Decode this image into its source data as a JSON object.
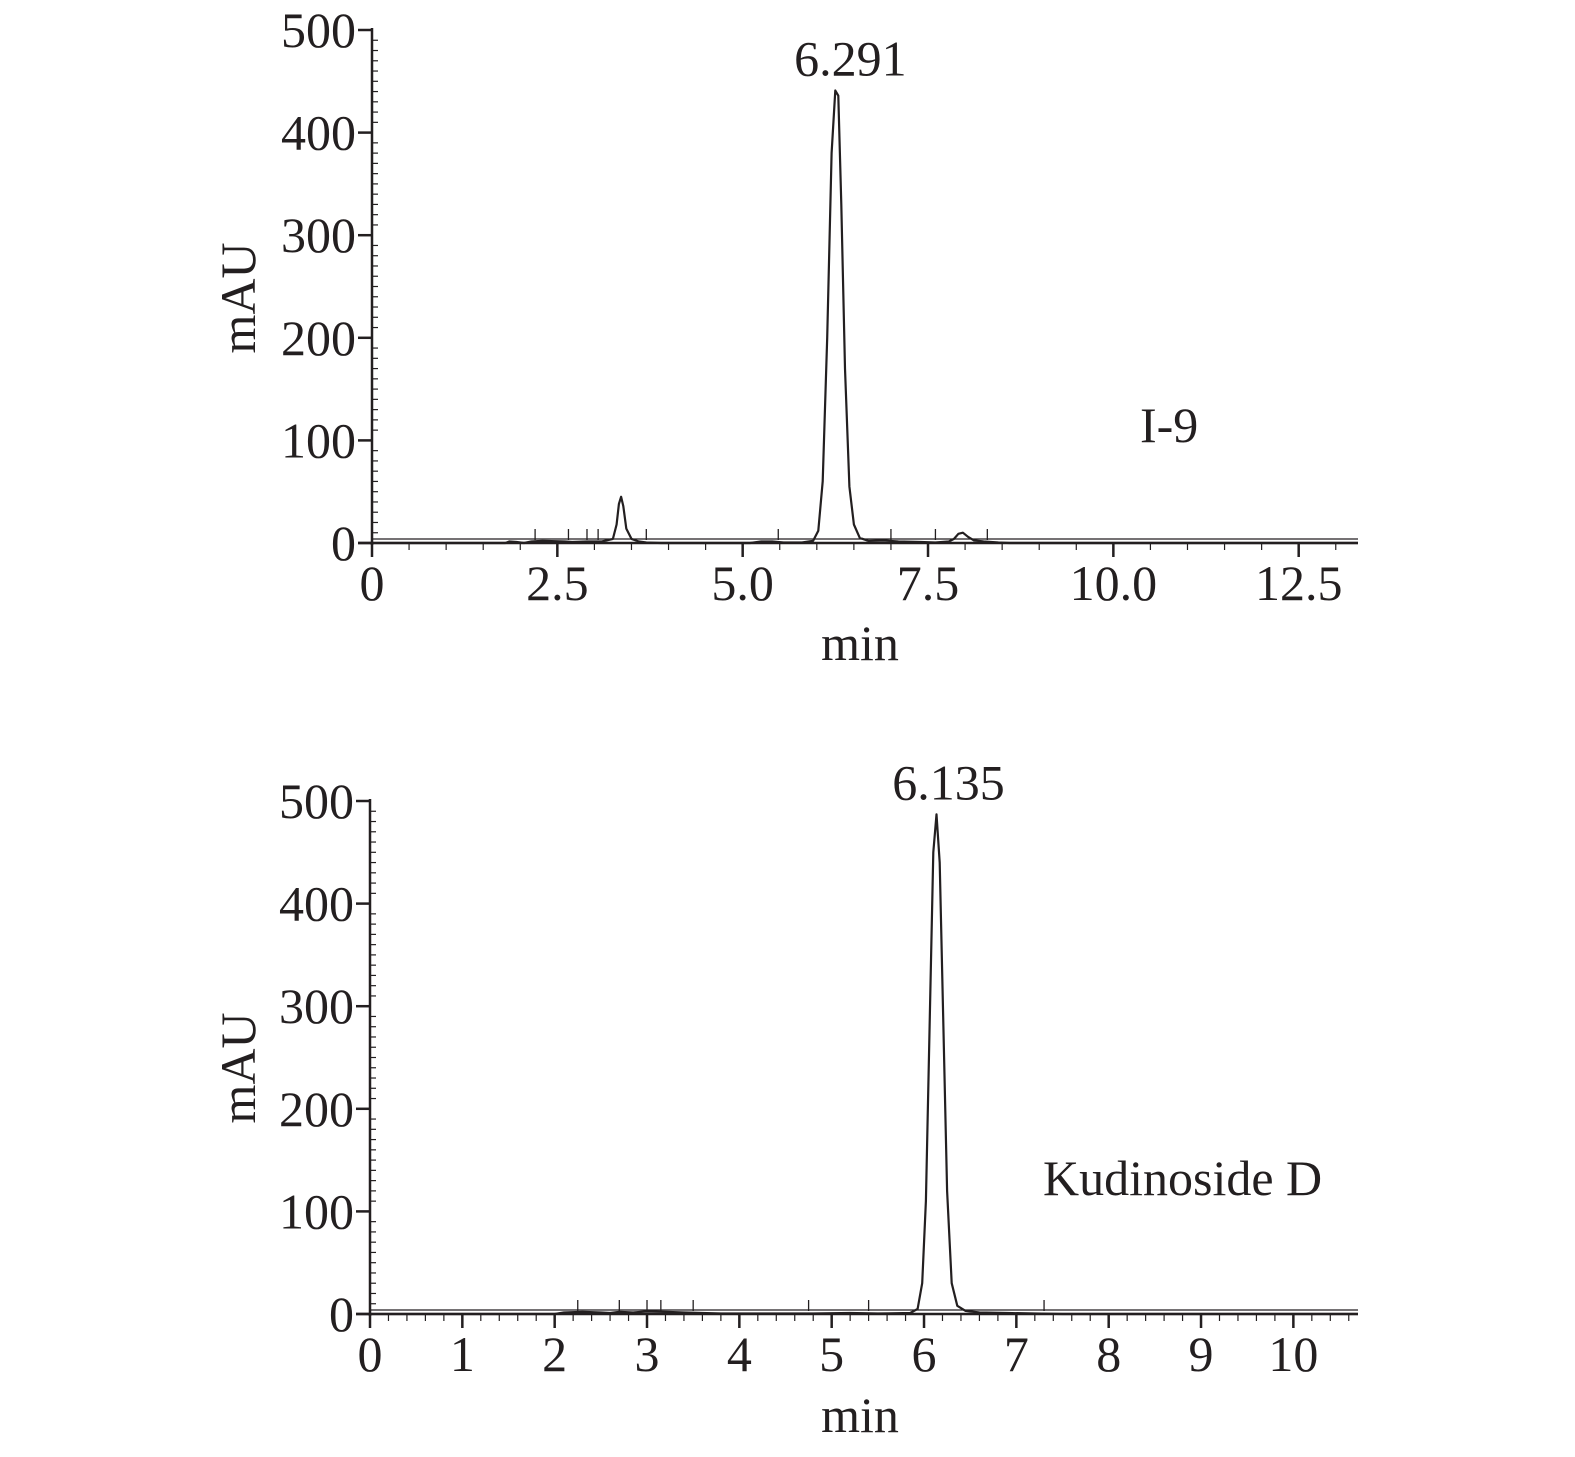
{
  "chart_data": [
    {
      "type": "line",
      "title": "",
      "xlabel": "min",
      "ylabel": "mAU",
      "xlim": [
        0,
        13.3
      ],
      "ylim": [
        0,
        500
      ],
      "x_ticks": [
        0,
        2.5,
        5.0,
        7.5,
        10.0,
        12.5
      ],
      "x_tick_labels": [
        "0",
        "2.5",
        "5.0",
        "7.5",
        "10.0",
        "12.5"
      ],
      "y_ticks": [
        0,
        100,
        200,
        300,
        400,
        500
      ],
      "y_tick_labels": [
        "0",
        "100",
        "200",
        "300",
        "400",
        "500"
      ],
      "grid": false,
      "sample_label": "I-9",
      "peak_label": "6.291",
      "main_peak": {
        "x": 6.291,
        "y": 441
      },
      "series": [
        {
          "values": [
            [
              0,
              0
            ],
            [
              1.8,
              0
            ],
            [
              1.85,
              1.5
            ],
            [
              1.95,
              1
            ],
            [
              2.05,
              0
            ],
            [
              2.15,
              1.5
            ],
            [
              2.3,
              2
            ],
            [
              2.6,
              1.5
            ],
            [
              2.7,
              1
            ],
            [
              2.9,
              1.5
            ],
            [
              3.1,
              1.5
            ],
            [
              3.25,
              4
            ],
            [
              3.3,
              18
            ],
            [
              3.33,
              38
            ],
            [
              3.36,
              45
            ],
            [
              3.39,
              36
            ],
            [
              3.43,
              14
            ],
            [
              3.5,
              4
            ],
            [
              3.6,
              1.5
            ],
            [
              3.7,
              0.5
            ],
            [
              3.9,
              0
            ],
            [
              5.1,
              0
            ],
            [
              5.25,
              1.5
            ],
            [
              5.4,
              1.5
            ],
            [
              5.55,
              0.5
            ],
            [
              5.8,
              0.5
            ],
            [
              5.95,
              2
            ],
            [
              6.02,
              12
            ],
            [
              6.08,
              60
            ],
            [
              6.14,
              200
            ],
            [
              6.2,
              380
            ],
            [
              6.25,
              441
            ],
            [
              6.29,
              436
            ],
            [
              6.33,
              330
            ],
            [
              6.38,
              170
            ],
            [
              6.44,
              55
            ],
            [
              6.5,
              18
            ],
            [
              6.58,
              5
            ],
            [
              6.7,
              2
            ],
            [
              6.9,
              2.5
            ],
            [
              7.1,
              1.5
            ],
            [
              7.4,
              1
            ],
            [
              7.6,
              0.5
            ],
            [
              7.78,
              1.5
            ],
            [
              7.85,
              4
            ],
            [
              7.91,
              9
            ],
            [
              7.97,
              10
            ],
            [
              8.04,
              6
            ],
            [
              8.12,
              2.5
            ],
            [
              8.25,
              1.5
            ],
            [
              8.45,
              0.5
            ],
            [
              8.6,
              0
            ],
            [
              13.3,
              0
            ]
          ]
        }
      ],
      "markers_x": [
        2.2,
        2.65,
        2.9,
        3.05,
        3.7,
        5.48,
        7.0,
        7.6,
        8.3
      ]
    },
    {
      "type": "line",
      "title": "",
      "xlabel": "min",
      "ylabel": "mAU",
      "xlim": [
        0,
        10.7
      ],
      "ylim": [
        0,
        500
      ],
      "x_ticks": [
        0,
        1,
        2,
        3,
        4,
        5,
        6,
        7,
        8,
        9,
        10
      ],
      "x_tick_labels": [
        "0",
        "1",
        "2",
        "3",
        "4",
        "5",
        "6",
        "7",
        "8",
        "9",
        "10"
      ],
      "y_ticks": [
        0,
        100,
        200,
        300,
        400,
        500
      ],
      "y_tick_labels": [
        "0",
        "100",
        "200",
        "300",
        "400",
        "500"
      ],
      "grid": false,
      "sample_label": "Kudinoside D",
      "peak_label": "6.135",
      "main_peak": {
        "x": 6.135,
        "y": 487
      },
      "series": [
        {
          "values": [
            [
              0,
              0
            ],
            [
              2.0,
              0
            ],
            [
              2.1,
              1.5
            ],
            [
              2.3,
              2
            ],
            [
              2.5,
              1.5
            ],
            [
              2.6,
              1
            ],
            [
              2.7,
              2
            ],
            [
              2.85,
              1.5
            ],
            [
              3.0,
              2.5
            ],
            [
              3.2,
              2
            ],
            [
              3.4,
              1.5
            ],
            [
              3.6,
              1
            ],
            [
              3.8,
              0.5
            ],
            [
              4.2,
              0.5
            ],
            [
              4.8,
              0.5
            ],
            [
              5.2,
              1
            ],
            [
              5.5,
              0.5
            ],
            [
              5.85,
              1
            ],
            [
              5.93,
              5
            ],
            [
              5.98,
              30
            ],
            [
              6.02,
              110
            ],
            [
              6.06,
              280
            ],
            [
              6.1,
              450
            ],
            [
              6.135,
              487
            ],
            [
              6.17,
              440
            ],
            [
              6.21,
              280
            ],
            [
              6.25,
              120
            ],
            [
              6.3,
              30
            ],
            [
              6.36,
              8
            ],
            [
              6.45,
              3
            ],
            [
              6.6,
              1.5
            ],
            [
              6.9,
              1
            ],
            [
              7.2,
              0.5
            ],
            [
              7.5,
              0
            ],
            [
              10.7,
              0
            ]
          ]
        }
      ],
      "markers_x": [
        2.25,
        2.7,
        3.0,
        3.15,
        3.5,
        4.75,
        5.4,
        7.3
      ]
    }
  ]
}
